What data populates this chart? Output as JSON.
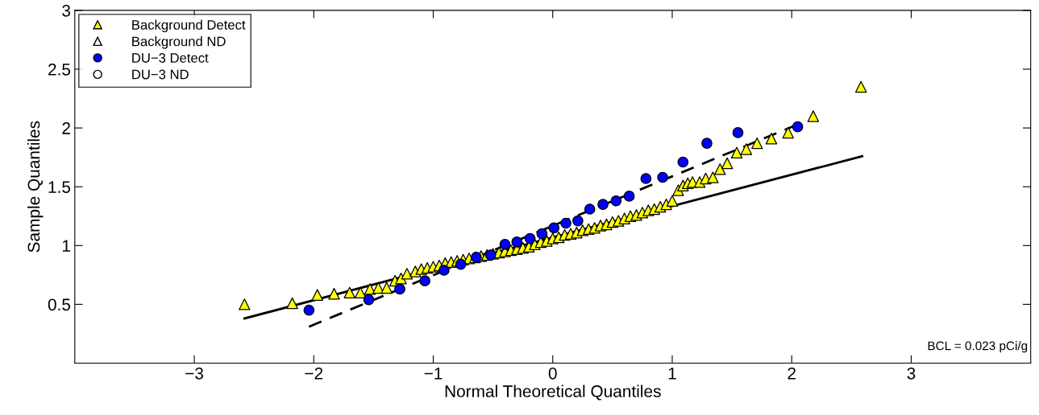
{
  "chart_data": {
    "type": "scatter",
    "xlabel": "Normal Theoretical Quantiles",
    "ylabel": "Sample Quantiles",
    "xlim": [
      -4,
      4
    ],
    "xticks": [
      {
        "value": -3,
        "label": "−3"
      },
      {
        "value": -2,
        "label": "−2"
      },
      {
        "value": -1,
        "label": "−1"
      },
      0,
      1,
      2,
      3
    ],
    "ylim": [
      0,
      3
    ],
    "yticks": [
      0.5,
      1,
      1.5,
      2,
      2.5,
      3
    ],
    "grid": false,
    "legend": "top left",
    "annotations": [
      "BCL = 0.023 pCi/g"
    ],
    "series": [
      {
        "name": "Background Detect",
        "marker": "triangle",
        "color": "#ffff00",
        "x": [
          -2.58,
          -2.18,
          -1.97,
          -1.83,
          -1.7,
          -1.61,
          -1.53,
          -1.46,
          -1.39,
          -1.32,
          -1.27,
          -1.22,
          -1.15,
          -1.1,
          -1.05,
          -1.0,
          -0.95,
          -0.9,
          -0.85,
          -0.8,
          -0.75,
          -0.7,
          -0.65,
          -0.6,
          -0.55,
          -0.5,
          -0.45,
          -0.4,
          -0.35,
          -0.3,
          -0.25,
          -0.2,
          -0.15,
          -0.1,
          -0.05,
          0.0,
          0.05,
          0.1,
          0.15,
          0.2,
          0.25,
          0.3,
          0.35,
          0.4,
          0.45,
          0.5,
          0.55,
          0.6,
          0.65,
          0.7,
          0.75,
          0.8,
          0.85,
          0.9,
          0.95,
          1.0,
          1.05,
          1.09,
          1.13,
          1.17,
          1.23,
          1.28,
          1.34,
          1.4,
          1.46,
          1.54,
          1.62,
          1.71,
          1.83,
          1.97,
          2.18,
          2.58
        ],
        "values": [
          0.5,
          0.51,
          0.58,
          0.59,
          0.6,
          0.6,
          0.63,
          0.64,
          0.64,
          0.7,
          0.72,
          0.76,
          0.78,
          0.8,
          0.81,
          0.82,
          0.83,
          0.85,
          0.86,
          0.87,
          0.88,
          0.89,
          0.9,
          0.91,
          0.92,
          0.93,
          0.94,
          0.95,
          0.96,
          0.97,
          0.98,
          0.99,
          1.01,
          1.03,
          1.04,
          1.06,
          1.07,
          1.09,
          1.1,
          1.11,
          1.13,
          1.14,
          1.15,
          1.17,
          1.18,
          1.2,
          1.21,
          1.23,
          1.25,
          1.26,
          1.28,
          1.3,
          1.31,
          1.33,
          1.35,
          1.38,
          1.47,
          1.51,
          1.53,
          1.54,
          1.54,
          1.57,
          1.58,
          1.65,
          1.7,
          1.79,
          1.82,
          1.87,
          1.91,
          1.96,
          2.1,
          2.35
        ]
      },
      {
        "name": "Background ND",
        "marker": "triangle",
        "color": "#ffffff"
      },
      {
        "name": "DU−3 Detect",
        "marker": "circle",
        "color": "#0000ff",
        "x": [
          -2.04,
          -1.54,
          -1.28,
          -1.07,
          -0.91,
          -0.77,
          -0.64,
          -0.52,
          -0.4,
          -0.3,
          -0.19,
          -0.09,
          0.01,
          0.11,
          0.21,
          0.31,
          0.42,
          0.53,
          0.64,
          0.78,
          0.92,
          1.09,
          1.29,
          1.55,
          2.05
        ],
        "values": [
          0.45,
          0.54,
          0.63,
          0.7,
          0.79,
          0.84,
          0.9,
          0.92,
          1.01,
          1.03,
          1.06,
          1.1,
          1.15,
          1.19,
          1.21,
          1.31,
          1.35,
          1.38,
          1.42,
          1.57,
          1.58,
          1.71,
          1.87,
          1.96,
          2.01
        ]
      },
      {
        "name": "DU−3 ND",
        "marker": "circle",
        "color": "#ffffff"
      },
      {
        "type": "line",
        "line_style": "solid",
        "color": "#000000",
        "x": [
          -2.58,
          2.59
        ],
        "values": [
          0.38,
          1.76
        ]
      },
      {
        "type": "line",
        "line_style": "dashed",
        "color": "#000000",
        "x": [
          -2.04,
          2.05
        ],
        "values": [
          0.31,
          2.03
        ]
      }
    ]
  }
}
